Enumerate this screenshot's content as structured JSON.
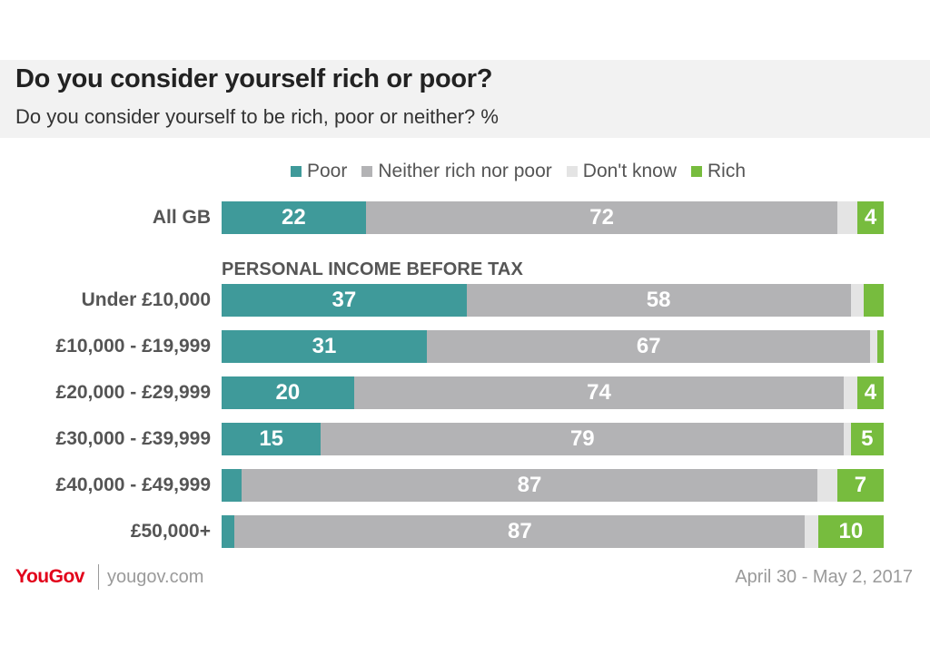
{
  "header": {
    "title": "Do you consider yourself rich or poor?",
    "subtitle": "Do you consider yourself to be rich, poor or neither? %"
  },
  "legend": [
    {
      "label": "Poor",
      "color": "#3f9a9a"
    },
    {
      "label": "Neither rich nor poor",
      "color": "#b3b3b5"
    },
    {
      "label": "Don't know",
      "color": "#e4e4e4"
    },
    {
      "label": "Rich",
      "color": "#77bc3e"
    }
  ],
  "section_heading": "PERSONAL INCOME BEFORE TAX",
  "chart_data": {
    "type": "bar",
    "orientation": "horizontal",
    "stacked": true,
    "categories": [
      "All GB",
      "Under £10,000",
      "£10,000 - £19,999",
      "£20,000 - £29,999",
      "£30,000 - £39,999",
      "£40,000 - £49,999",
      "£50,000+"
    ],
    "series": [
      {
        "name": "Poor",
        "values": [
          22,
          37,
          31,
          20,
          15,
          3,
          2
        ],
        "labels": [
          "22",
          "37",
          "31",
          "20",
          "15",
          "",
          ""
        ]
      },
      {
        "name": "Neither rich nor poor",
        "values": [
          72,
          58,
          67,
          74,
          79,
          87,
          87
        ],
        "labels": [
          "72",
          "58",
          "67",
          "74",
          "79",
          "87",
          "87"
        ]
      },
      {
        "name": "Don't know",
        "values": [
          3,
          2,
          1,
          2,
          1,
          3,
          2
        ],
        "labels": [
          "",
          "",
          "",
          "",
          "",
          "",
          ""
        ]
      },
      {
        "name": "Rich",
        "values": [
          4,
          3,
          1,
          4,
          5,
          7,
          10
        ],
        "labels": [
          "4",
          "",
          "",
          "4",
          "5",
          "7",
          "10"
        ]
      }
    ],
    "xlim": [
      0,
      100
    ]
  },
  "footer": {
    "logo": "YouGov",
    "url": "yougov.com",
    "date": "April 30 - May 2, 2017"
  }
}
